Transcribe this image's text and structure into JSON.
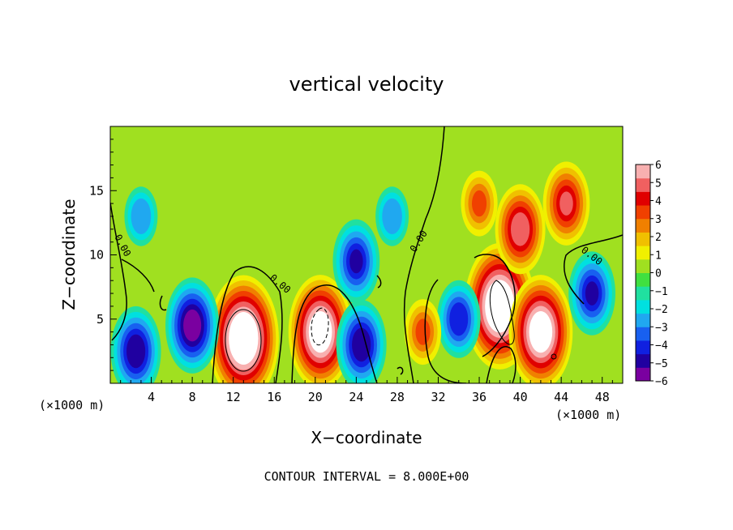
{
  "chart_data": {
    "type": "heatmap",
    "title": "vertical velocity",
    "xlabel": "X−coordinate",
    "ylabel": "Z−coordinate",
    "x_unit_left": "(×1000 m)",
    "x_unit_right": "(×1000 m)",
    "xlim": [
      0,
      50
    ],
    "ylim": [
      0,
      20
    ],
    "x_ticks": [
      4,
      8,
      12,
      16,
      20,
      24,
      28,
      32,
      36,
      40,
      44,
      48
    ],
    "y_ticks": [
      5,
      10,
      15
    ],
    "colorbar": {
      "levels": [
        6,
        5,
        4,
        3,
        2,
        1,
        0,
        -1,
        -2,
        -3,
        -4,
        -5,
        -6
      ],
      "labels": [
        "6",
        "5",
        "4",
        "3",
        "2",
        "1",
        "0",
        "−1",
        "−2",
        "−3",
        "−4",
        "−5",
        "−6"
      ],
      "colors": [
        "#7a00a0",
        "#2000a0",
        "#1020e0",
        "#1860f0",
        "#20a8f0",
        "#00e0e0",
        "#20e0a0",
        "#40e040",
        "#a0e020",
        "#f0f000",
        "#f0c000",
        "#f08000",
        "#f04000",
        "#e00000",
        "#f06060",
        "#f8b0b0"
      ]
    },
    "features": [
      {
        "x": 13,
        "z": 3.5,
        "w": 8
      },
      {
        "x": 20.5,
        "z": 4,
        "w": 7
      },
      {
        "x": 8,
        "z": 4.5,
        "w": -5.5
      },
      {
        "x": 2.5,
        "z": 2.5,
        "w": -5
      },
      {
        "x": 24,
        "z": 9.5,
        "w": -4.5
      },
      {
        "x": 24.5,
        "z": 3,
        "w": -5
      },
      {
        "x": 38,
        "z": 6,
        "w": 8
      },
      {
        "x": 42,
        "z": 4,
        "w": 7
      },
      {
        "x": 40,
        "z": 12,
        "w": 5
      },
      {
        "x": 44.5,
        "z": 14,
        "w": 4.5
      },
      {
        "x": 36,
        "z": 14,
        "w": 3
      },
      {
        "x": 34,
        "z": 5,
        "w": -4
      },
      {
        "x": 47,
        "z": 7,
        "w": -4.5
      },
      {
        "x": 30.5,
        "z": 4,
        "w": 3
      },
      {
        "x": 3,
        "z": 13,
        "w": -2.5
      },
      {
        "x": 27.5,
        "z": 13,
        "w": -2.5
      }
    ],
    "contour_labels": [
      "0.00",
      "0.00",
      "0.00",
      "0.00"
    ],
    "footer": "CONTOUR INTERVAL = 8.000E+00"
  }
}
